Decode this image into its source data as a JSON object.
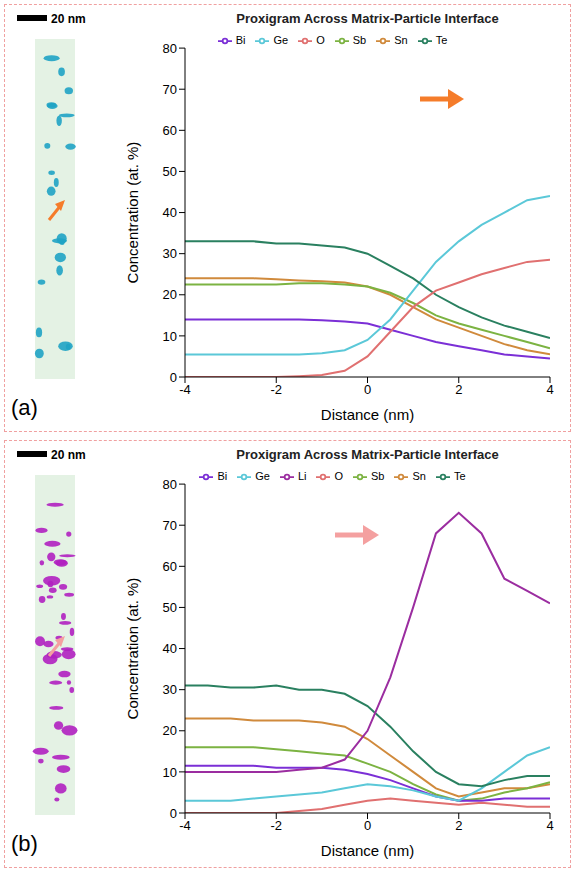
{
  "panels": [
    {
      "label": "(a)",
      "scale_bar": "20 nm"
    },
    {
      "label": "(b)",
      "scale_bar": "20 nm"
    }
  ],
  "chart_data": [
    {
      "type": "line",
      "title": "Proxigram Across Matrix-Particle Interface",
      "x_label": "Distance (nm)",
      "y_label": "Concentration (at. %)",
      "x": [
        -4,
        -3.5,
        -3,
        -2.5,
        -2,
        -1.5,
        -1,
        -0.5,
        0,
        0.5,
        1,
        1.5,
        2,
        2.5,
        3,
        3.5,
        4
      ],
      "xlim": [
        -4,
        4
      ],
      "xticks": [
        -4,
        -2,
        0,
        2,
        4
      ],
      "ylim": [
        0,
        80
      ],
      "yticks": [
        0,
        10,
        20,
        30,
        40,
        50,
        60,
        70,
        80
      ],
      "grid": false,
      "legend": "top",
      "series": [
        {
          "name": "Sn",
          "color": "#d08a3c",
          "values": [
            24,
            24,
            24,
            24,
            23.8,
            23.5,
            23.3,
            23,
            22,
            20,
            17,
            14,
            12,
            10,
            8,
            6.5,
            5.5
          ]
        },
        {
          "name": "Sb",
          "color": "#7cb342",
          "values": [
            22.5,
            22.5,
            22.5,
            22.5,
            22.5,
            22.8,
            22.8,
            22.5,
            22,
            20.5,
            18,
            15,
            13,
            11.5,
            10,
            8.5,
            7
          ]
        },
        {
          "name": "Bi",
          "color": "#7b2fd6",
          "values": [
            14,
            14,
            14,
            14,
            14,
            14,
            13.8,
            13.5,
            13,
            11.5,
            10,
            8.5,
            7.5,
            6.5,
            5.5,
            5,
            4.5
          ]
        },
        {
          "name": "Ge",
          "color": "#5bc8d8",
          "values": [
            5.5,
            5.5,
            5.5,
            5.5,
            5.5,
            5.5,
            5.8,
            6.5,
            9,
            14,
            21,
            28,
            33,
            37,
            40,
            43,
            44
          ]
        },
        {
          "name": "Te",
          "color": "#2a8060",
          "values": [
            33,
            33,
            33,
            33,
            32.5,
            32.5,
            32,
            31.5,
            30,
            27,
            24,
            20,
            17,
            14.5,
            12.5,
            11,
            9.5
          ]
        },
        {
          "name": "O",
          "color": "#e07070",
          "values": [
            0,
            0,
            0,
            0,
            0,
            0.2,
            0.5,
            1.5,
            5,
            11,
            17,
            21,
            23,
            25,
            26.5,
            28,
            28.5
          ]
        }
      ]
    },
    {
      "type": "line",
      "title": "Proxigram Across Matrix-Particle Interface",
      "x_label": "Distance (nm)",
      "y_label": "Concentration (at. %)",
      "x": [
        -4,
        -3.5,
        -3,
        -2.5,
        -2,
        -1.5,
        -1,
        -0.5,
        0,
        0.5,
        1,
        1.5,
        2,
        2.5,
        3,
        3.5,
        4
      ],
      "xlim": [
        -4,
        4
      ],
      "xticks": [
        -4,
        -2,
        0,
        2,
        4
      ],
      "ylim": [
        0,
        80
      ],
      "yticks": [
        0,
        10,
        20,
        30,
        40,
        50,
        60,
        70,
        80
      ],
      "grid": false,
      "legend": "top",
      "series": [
        {
          "name": "Sn",
          "color": "#d08a3c",
          "values": [
            23,
            23,
            23,
            22.5,
            22.5,
            22.5,
            22,
            21,
            18,
            14,
            10,
            6,
            4,
            5,
            6,
            6,
            7
          ]
        },
        {
          "name": "Sb",
          "color": "#7cb342",
          "values": [
            16,
            16,
            16,
            16,
            15.5,
            15,
            14.5,
            14,
            12,
            10,
            7,
            4.5,
            3,
            3.5,
            5,
            6,
            7.5
          ]
        },
        {
          "name": "Bi",
          "color": "#7b2fd6",
          "values": [
            11.5,
            11.5,
            11.5,
            11.5,
            11,
            11,
            11,
            10.5,
            9.5,
            8,
            6,
            4,
            3,
            3,
            3.5,
            3.5,
            3.5
          ]
        },
        {
          "name": "Ge",
          "color": "#5bc8d8",
          "values": [
            3,
            3,
            3,
            3.5,
            4,
            4.5,
            5,
            6,
            7,
            6.5,
            5.5,
            4,
            3,
            6,
            10,
            14,
            16
          ]
        },
        {
          "name": "Te",
          "color": "#2a8060",
          "values": [
            31,
            31,
            30.5,
            30.5,
            31,
            30,
            30,
            29,
            26,
            21,
            15,
            10,
            7,
            6.5,
            8,
            9,
            9
          ]
        },
        {
          "name": "O",
          "color": "#e07070",
          "values": [
            0,
            0,
            0,
            0,
            0,
            0.5,
            1,
            2,
            3,
            3.5,
            3,
            2.5,
            2,
            2.5,
            2,
            1.5,
            1.5
          ]
        },
        {
          "name": "Li",
          "color": "#9b2da0",
          "values": [
            10,
            10,
            10,
            10,
            10,
            10.5,
            11,
            13,
            20,
            33,
            50,
            68,
            73,
            68,
            57,
            54,
            51
          ]
        }
      ]
    }
  ]
}
